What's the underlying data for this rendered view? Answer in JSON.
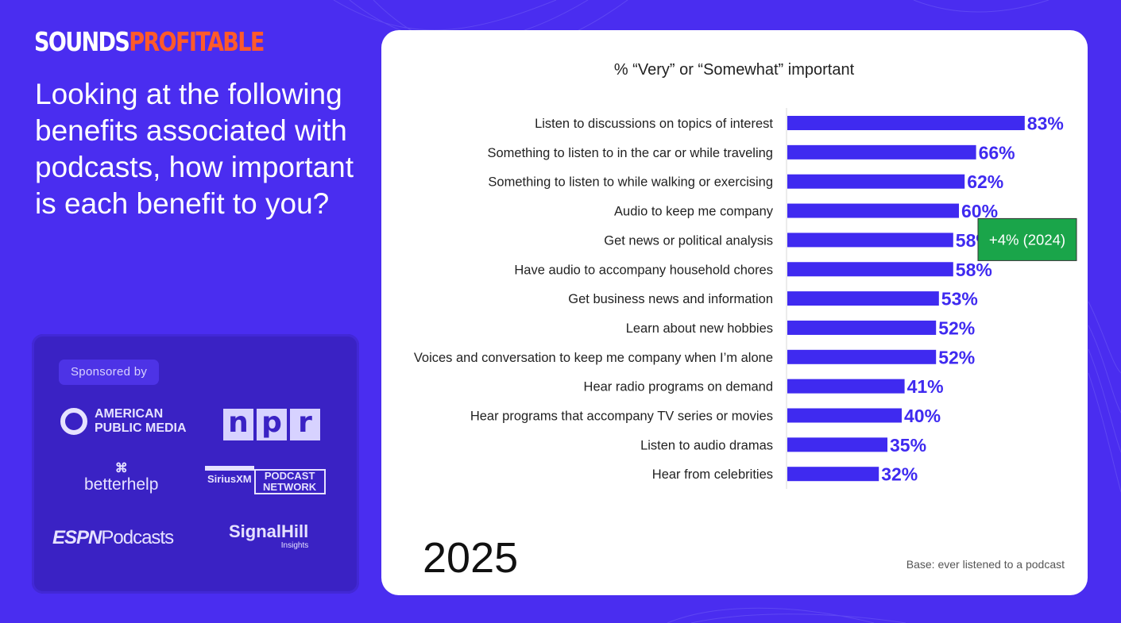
{
  "brand": {
    "logo_part1": "SOUNDS",
    "logo_part2": "PROFITABLE",
    "color_primary": "#4a2df0",
    "color_accent": "#ff5a2a"
  },
  "question": "Looking at the following benefits associated with podcasts, how important is each benefit to you?",
  "sponsors": {
    "label": "Sponsored by",
    "apm": [
      "AMERICAN",
      "PUBLIC MEDIA"
    ],
    "npr": [
      "n",
      "p",
      "r"
    ],
    "betterhelp_mark": "⌘",
    "betterhelp": "betterhelp",
    "siriusxm": "SiriusXM",
    "siriusxm_network": [
      "PODCAST",
      "NETWORK"
    ],
    "espn": "ESPN",
    "espn_suffix": "Podcasts",
    "signalhill": "SignalHill",
    "signalhill_sub": "Insights"
  },
  "chart_data": {
    "type": "bar",
    "orientation": "horizontal",
    "title": "% “Very” or “Somewhat” important",
    "categories": [
      "Listen to discussions on topics of interest",
      "Something to listen to in the car or while traveling",
      "Something to listen to while walking or exercising",
      "Audio to keep me company",
      "Get news or political analysis",
      "Have audio to accompany household chores",
      "Get business news and information",
      "Learn about new hobbies",
      "Voices and conversation to keep me company when I’m alone",
      "Hear radio programs on demand",
      "Hear programs that accompany TV series or movies",
      "Listen to audio dramas",
      "Hear from celebrities"
    ],
    "values": [
      83,
      66,
      62,
      60,
      58,
      58,
      53,
      52,
      52,
      41,
      40,
      35,
      32
    ],
    "value_suffix": "%",
    "xlim": [
      0,
      100
    ],
    "bar_color": "#3f2af0",
    "annotation": {
      "category_index": 4,
      "text": "+4% (2024)",
      "color": "#1aa54a"
    },
    "grid": false
  },
  "year": "2025",
  "base_note": "Base: ever listened to a podcast"
}
